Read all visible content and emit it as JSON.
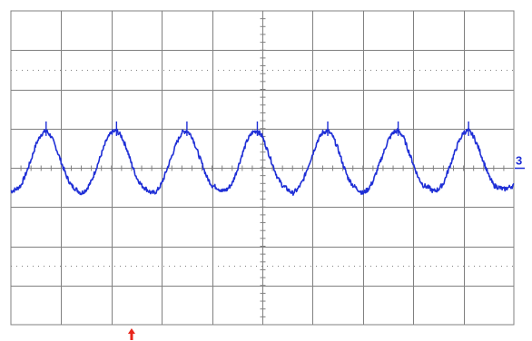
{
  "chart_data": {
    "type": "line",
    "title": "",
    "xlabel": "",
    "ylabel": "",
    "x_divisions": 10,
    "y_divisions": 8,
    "xlim": [
      0,
      10
    ],
    "ylim": [
      -4,
      4
    ],
    "grid": true,
    "series": [
      {
        "name": "",
        "channel_marker": "3",
        "color": "#1f2fd6",
        "x": [
          0.0,
          0.1,
          0.2,
          0.3,
          0.4,
          0.5,
          0.6,
          0.7,
          0.8,
          0.9,
          1.0,
          1.1,
          1.2,
          1.3,
          1.4,
          1.5,
          1.6,
          1.7,
          1.8,
          1.9,
          2.0,
          2.1,
          2.2,
          2.3,
          2.4,
          2.5,
          2.6,
          2.7,
          2.8,
          2.9,
          3.0,
          3.1,
          3.2,
          3.3,
          3.4,
          3.5,
          3.6,
          3.7,
          3.8,
          3.9,
          4.0,
          4.1,
          4.2,
          4.3,
          4.4,
          4.5,
          4.6,
          4.7,
          4.8,
          4.9,
          5.0,
          5.1,
          5.2,
          5.3,
          5.4,
          5.5,
          5.6,
          5.7,
          5.8,
          5.9,
          6.0,
          6.1,
          6.2,
          6.3,
          6.4,
          6.5,
          6.6,
          6.7,
          6.8,
          6.9,
          7.0,
          7.1,
          7.2,
          7.3,
          7.4,
          7.5,
          7.6,
          7.7,
          7.8,
          7.9,
          8.0,
          8.1,
          8.2,
          8.3,
          8.4,
          8.5,
          8.6,
          8.7,
          8.8,
          8.9,
          9.0,
          9.1,
          9.2,
          9.3,
          9.4,
          9.5,
          9.6,
          9.7,
          9.8,
          9.9,
          10.0
        ],
        "y": [
          -0.6,
          -0.55,
          -0.45,
          -0.15,
          0.2,
          0.6,
          0.85,
          0.95,
          0.8,
          0.5,
          0.15,
          -0.2,
          -0.45,
          -0.55,
          -0.65,
          -0.55,
          -0.35,
          0.0,
          0.35,
          0.7,
          0.9,
          0.95,
          0.8,
          0.5,
          0.1,
          -0.25,
          -0.45,
          -0.55,
          -0.65,
          -0.6,
          -0.4,
          -0.05,
          0.3,
          0.65,
          0.9,
          0.95,
          0.8,
          0.45,
          0.1,
          -0.25,
          -0.45,
          -0.5,
          -0.6,
          -0.55,
          -0.4,
          -0.05,
          0.35,
          0.7,
          0.9,
          0.95,
          0.8,
          0.45,
          0.1,
          -0.25,
          -0.45,
          -0.55,
          -0.65,
          -0.55,
          -0.35,
          0.0,
          0.35,
          0.7,
          0.9,
          0.95,
          0.8,
          0.5,
          0.1,
          -0.25,
          -0.45,
          -0.55,
          -0.65,
          -0.55,
          -0.35,
          0.0,
          0.35,
          0.7,
          0.9,
          0.95,
          0.8,
          0.45,
          0.1,
          -0.25,
          -0.45,
          -0.5,
          -0.6,
          -0.55,
          -0.4,
          -0.05,
          0.3,
          0.65,
          0.9,
          0.95,
          0.8,
          0.5,
          0.15,
          -0.2,
          -0.45,
          -0.5,
          -0.55,
          -0.5,
          -0.45
        ]
      }
    ],
    "ground_marker": "3",
    "trigger_marker_x": 2.4,
    "trigger_color": "#e8251b",
    "grid_color": "#808080",
    "background": "#ffffff"
  }
}
